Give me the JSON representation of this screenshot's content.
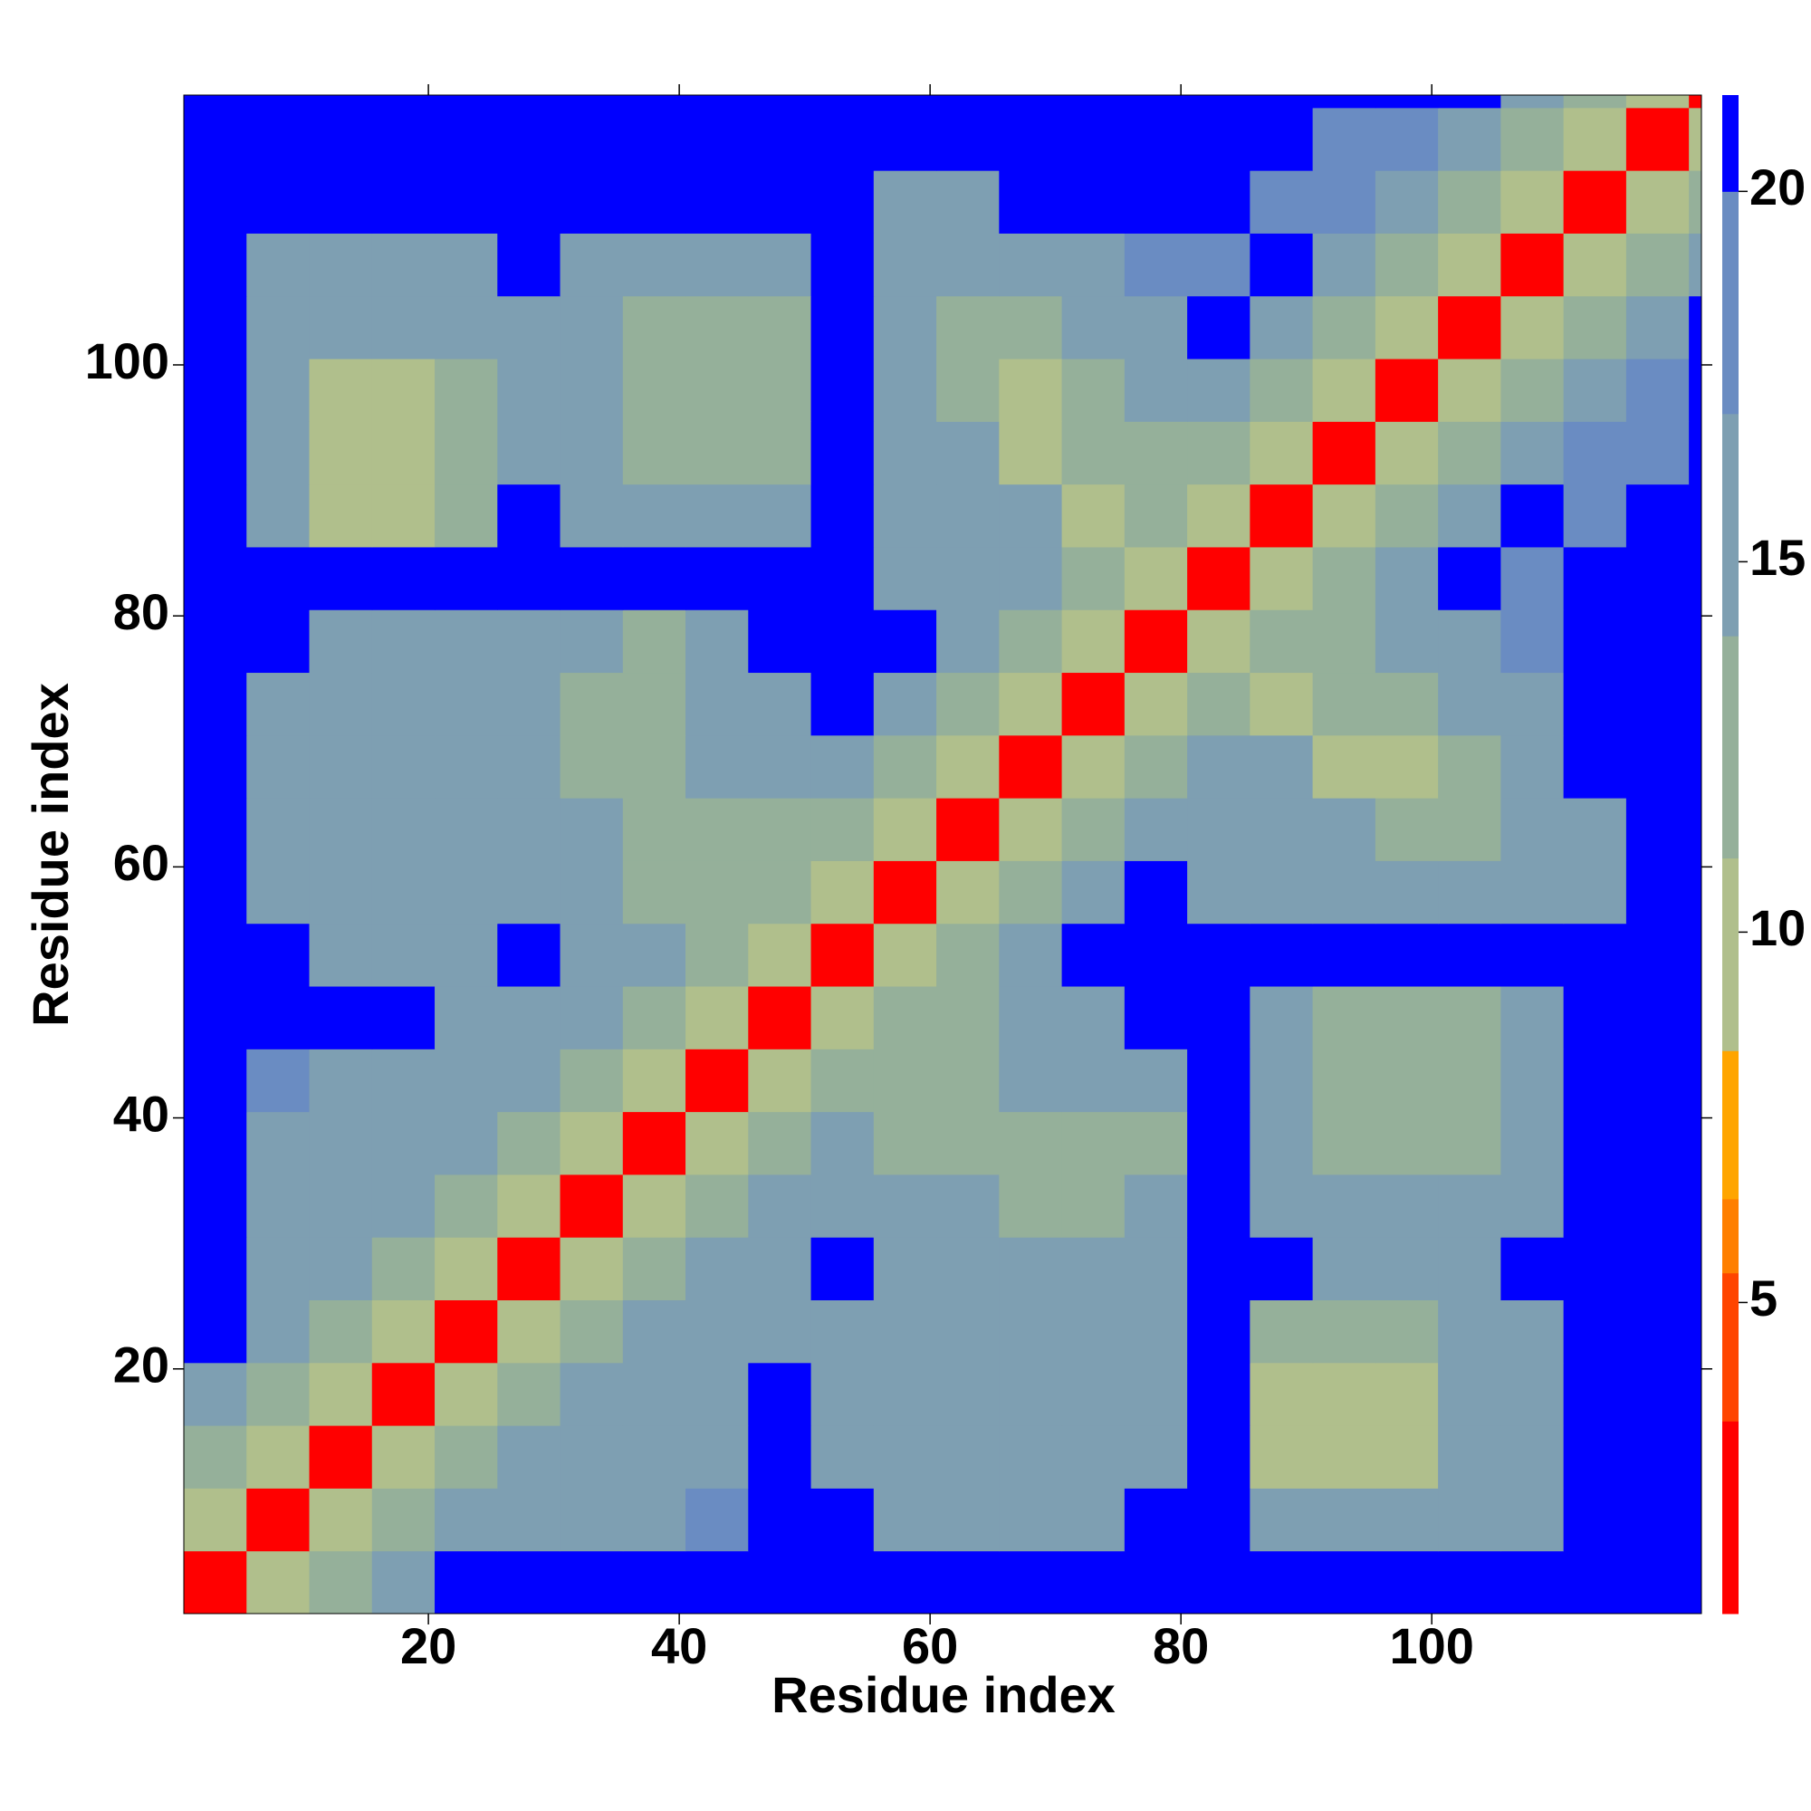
{
  "chart_data": {
    "type": "heatmap",
    "xlabel": "Residue index",
    "ylabel": "Residue index",
    "xlim": [
      0.5,
      121.5
    ],
    "ylim": [
      0.5,
      121.5
    ],
    "xticks": [
      20,
      40,
      60,
      80,
      100
    ],
    "yticks": [
      20,
      40,
      60,
      80,
      100
    ],
    "xbins": [
      0.5,
      5.5,
      10.5,
      15.5,
      20.5,
      25.5,
      30.5,
      35.5,
      40.5,
      45.5,
      50.5,
      55.5,
      60.5,
      65.5,
      70.5,
      75.5,
      80.5,
      85.5,
      90.5,
      95.5,
      100.5,
      105.5,
      110.5,
      115.5,
      120.5,
      121.5
    ],
    "ybins": [
      0.5,
      5.5,
      10.5,
      15.5,
      20.5,
      25.5,
      30.5,
      35.5,
      40.5,
      45.5,
      50.5,
      55.5,
      60.5,
      65.5,
      70.5,
      75.5,
      80.5,
      85.5,
      90.5,
      95.5,
      100.5,
      105.5,
      110.5,
      115.5,
      120.5,
      121.5
    ],
    "z": [
      [
        3,
        10,
        14,
        17,
        21,
        21,
        21,
        21,
        21,
        21,
        21,
        21,
        21,
        21,
        21,
        21,
        21,
        21,
        21,
        21,
        21,
        21,
        21,
        21,
        21
      ],
      [
        10,
        3,
        10,
        14,
        17,
        17,
        17,
        17,
        18,
        21,
        21,
        17,
        17,
        17,
        17,
        21,
        21,
        16,
        16,
        16,
        16,
        16,
        21,
        21,
        21
      ],
      [
        14,
        10,
        3,
        10,
        14,
        17,
        16,
        16,
        16,
        21,
        16,
        16,
        16,
        16,
        16,
        16,
        21,
        11,
        11,
        11,
        15,
        15,
        21,
        21,
        21
      ],
      [
        17,
        14,
        10,
        3,
        10,
        14,
        17,
        16,
        16,
        21,
        16,
        16,
        16,
        16,
        16,
        16,
        21,
        11,
        11,
        11,
        15,
        16,
        21,
        21,
        21
      ],
      [
        21,
        17,
        14,
        10,
        3,
        10,
        14,
        17,
        17,
        17,
        16,
        16,
        16,
        16,
        16,
        16,
        21,
        13,
        13,
        13,
        16,
        16,
        21,
        21,
        21
      ],
      [
        21,
        17,
        17,
        14,
        10,
        3,
        10,
        14,
        17,
        17,
        21,
        15,
        15,
        15,
        15,
        15,
        21,
        21,
        17,
        17,
        17,
        21,
        21,
        21,
        21
      ],
      [
        21,
        17,
        16,
        17,
        14,
        10,
        3,
        10,
        14,
        17,
        15,
        15,
        15,
        13,
        14,
        15,
        21,
        17,
        17,
        17,
        17,
        17,
        21,
        21,
        21
      ],
      [
        21,
        17,
        16,
        16,
        17,
        14,
        10,
        3,
        10,
        14,
        17,
        14,
        12,
        14,
        14,
        14,
        21,
        16,
        14,
        14,
        14,
        16,
        21,
        21,
        21
      ],
      [
        21,
        18,
        16,
        16,
        17,
        17,
        14,
        10,
        3,
        10,
        14,
        12,
        13,
        15,
        16,
        17,
        21,
        15,
        13,
        13,
        13,
        15,
        21,
        21,
        21
      ],
      [
        21,
        21,
        21,
        21,
        17,
        17,
        17,
        14,
        10,
        3,
        10,
        12,
        13,
        15,
        16,
        21,
        21,
        15,
        14,
        14,
        14,
        16,
        21,
        21,
        21
      ],
      [
        21,
        21,
        16,
        16,
        16,
        21,
        15,
        17,
        14,
        10,
        3,
        10,
        14,
        17,
        21,
        21,
        21,
        21,
        21,
        21,
        21,
        21,
        21,
        21,
        21
      ],
      [
        21,
        17,
        16,
        16,
        16,
        15,
        15,
        14,
        12,
        12,
        10,
        3,
        10,
        14,
        17,
        21,
        16,
        16,
        16,
        16,
        16,
        15,
        17,
        21,
        21
      ],
      [
        21,
        17,
        16,
        16,
        16,
        15,
        15,
        12,
        13,
        13,
        14,
        10,
        3,
        10,
        14,
        17,
        16,
        16,
        16,
        13,
        12,
        15,
        17,
        21,
        21
      ],
      [
        21,
        17,
        16,
        16,
        16,
        15,
        13,
        14,
        15,
        15,
        17,
        14,
        10,
        3,
        10,
        14,
        15,
        15,
        11,
        11,
        14,
        16,
        21,
        21,
        21
      ],
      [
        21,
        17,
        16,
        16,
        16,
        15,
        14,
        14,
        16,
        16,
        21,
        17,
        14,
        10,
        3,
        10,
        14,
        11,
        12,
        14,
        15,
        17,
        21,
        21,
        21
      ],
      [
        21,
        21,
        16,
        16,
        16,
        15,
        15,
        14,
        17,
        21,
        21,
        21,
        17,
        14,
        10,
        3,
        10,
        12,
        14,
        15,
        17,
        18,
        21,
        21,
        21
      ],
      [
        21,
        21,
        21,
        21,
        21,
        21,
        21,
        21,
        21,
        21,
        21,
        16,
        16,
        15,
        14,
        10,
        3,
        10,
        14,
        17,
        21,
        18,
        21,
        21,
        21
      ],
      [
        21,
        16,
        11,
        11,
        13,
        21,
        17,
        16,
        15,
        15,
        21,
        16,
        16,
        15,
        11,
        12,
        10,
        3,
        10,
        14,
        17,
        21,
        18,
        21,
        21
      ],
      [
        21,
        16,
        11,
        11,
        13,
        17,
        17,
        14,
        13,
        14,
        21,
        16,
        16,
        11,
        12,
        14,
        14,
        10,
        3,
        10,
        14,
        17,
        18,
        18,
        21
      ],
      [
        21,
        16,
        11,
        11,
        13,
        17,
        17,
        14,
        13,
        14,
        21,
        16,
        13,
        11,
        14,
        15,
        17,
        14,
        10,
        3,
        10,
        14,
        17,
        18,
        21
      ],
      [
        21,
        16,
        15,
        15,
        16,
        17,
        17,
        14,
        13,
        14,
        21,
        16,
        12,
        14,
        15,
        17,
        21,
        17,
        14,
        10,
        3,
        10,
        14,
        17,
        21
      ],
      [
        21,
        16,
        15,
        16,
        16,
        21,
        17,
        16,
        15,
        16,
        21,
        15,
        15,
        16,
        17,
        18,
        18,
        21,
        17,
        14,
        10,
        3,
        10,
        14,
        17
      ],
      [
        21,
        21,
        21,
        21,
        21,
        21,
        21,
        21,
        21,
        21,
        21,
        17,
        17,
        21,
        21,
        21,
        21,
        18,
        18,
        17,
        14,
        10,
        3,
        10,
        14
      ],
      [
        21,
        21,
        21,
        21,
        21,
        21,
        21,
        21,
        21,
        21,
        21,
        21,
        21,
        21,
        21,
        21,
        21,
        21,
        18,
        18,
        17,
        14,
        10,
        3,
        10
      ],
      [
        21,
        21,
        21,
        21,
        21,
        21,
        21,
        21,
        21,
        21,
        21,
        21,
        21,
        21,
        21,
        21,
        21,
        21,
        21,
        21,
        21,
        17,
        14,
        10,
        3
      ]
    ],
    "colorscale": [
      [
        3.4,
        "#ff0000"
      ],
      [
        5.4,
        "#ff4500"
      ],
      [
        6.4,
        "#ff7f00"
      ],
      [
        8.4,
        "#ffa500"
      ],
      [
        11,
        "#b0bf8c"
      ],
      [
        14,
        "#95b09a"
      ],
      [
        17,
        "#7e9fb2"
      ],
      [
        20,
        "#6a8cc2"
      ],
      [
        21.3,
        "#0000ff"
      ]
    ],
    "clim": [
      0.8,
      21.3
    ],
    "cticks": [
      5,
      10,
      15,
      20
    ]
  }
}
